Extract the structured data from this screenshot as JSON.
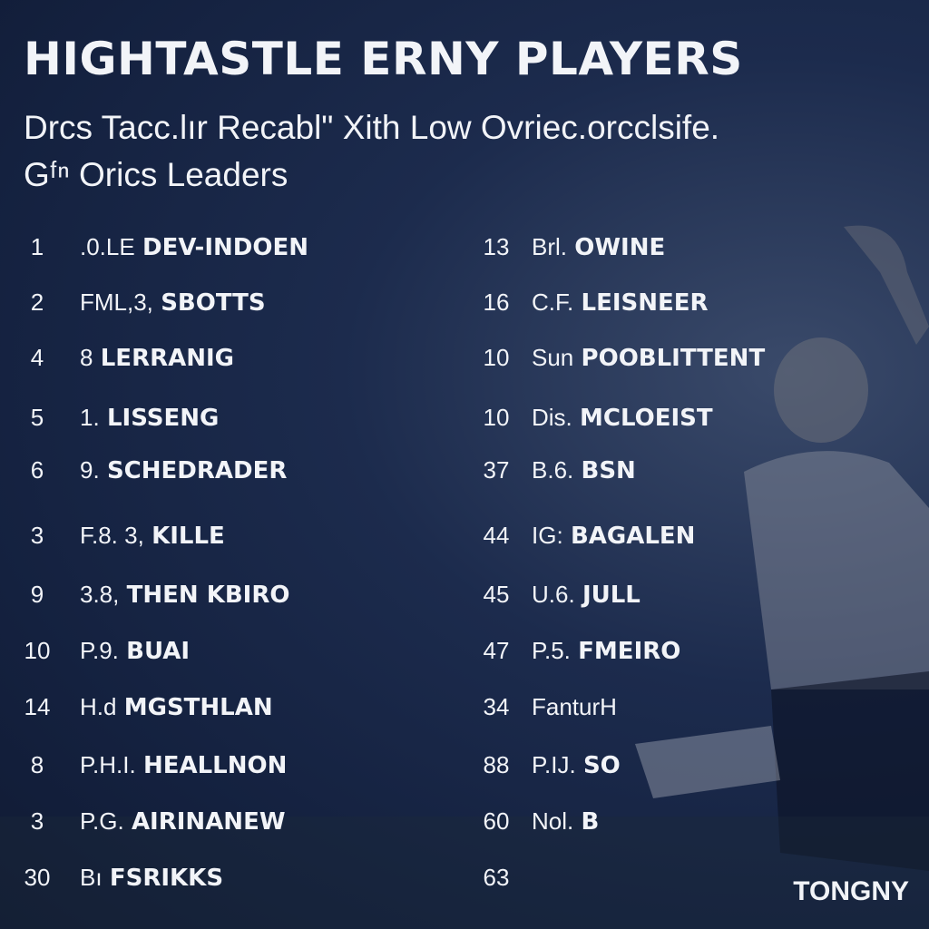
{
  "header": {
    "title": "HIGHTASTLE ERNY PLAYERS",
    "subtitle_lines": [
      "Drcs Tacc.lır Recabl\" Xith Low Ovriec.orcclsife.",
      "Gᶠⁿ Orics Leaders"
    ]
  },
  "columns": [
    [
      {
        "rank": 1,
        "prefix": ".0.LE",
        "name": "DEV-INDOEN"
      },
      {
        "rank": 2,
        "prefix": "FML,3,",
        "name": "SBOTTS"
      },
      {
        "rank": 4,
        "prefix": "8",
        "name": "LERRANIG"
      },
      {
        "rank": 5,
        "prefix": "1.",
        "name": "LISSENG"
      },
      {
        "rank": 6,
        "prefix": "9.",
        "name": "SCHEDRADER"
      },
      {
        "rank": 3,
        "prefix": "F.8. 3,",
        "name": "KILLE"
      },
      {
        "rank": 9,
        "prefix": "3.8,",
        "name": "THEN KBIRO"
      },
      {
        "rank": 10,
        "prefix": "P.9.",
        "name": "BUAI"
      },
      {
        "rank": 14,
        "prefix": "H.d",
        "name": "MGSTHLAN"
      },
      {
        "rank": 8,
        "prefix": "P.H.I.",
        "name": "HEALLNON"
      },
      {
        "rank": 3,
        "prefix": "P.G.",
        "name": "AIRINANEW"
      },
      {
        "rank": 30,
        "prefix": "Bı",
        "name": "FSRIKKS"
      }
    ],
    [
      {
        "rank": 13,
        "prefix": "Brl.",
        "name": "OWINE"
      },
      {
        "rank": 16,
        "prefix": "C.F.",
        "name": "LEISNEER"
      },
      {
        "rank": 10,
        "prefix": "Sun",
        "name": "POOBLITTENT"
      },
      {
        "rank": 10,
        "prefix": "Dis.",
        "name": "MCLOEIST"
      },
      {
        "rank": 37,
        "prefix": "B.6.",
        "name": "BSN"
      },
      {
        "rank": 44,
        "prefix": "IG:",
        "name": "BAGALEN"
      },
      {
        "rank": 45,
        "prefix": "U.6.",
        "name": "JULL"
      },
      {
        "rank": 47,
        "prefix": "P.5.",
        "name": "FMEIRO"
      },
      {
        "rank": 34,
        "prefix": "FanturH"
      },
      {
        "rank": 88,
        "prefix": "P.IJ.",
        "name": "SO"
      },
      {
        "rank": 60,
        "prefix": "Nol.",
        "name": "B"
      },
      {
        "rank": 63
      }
    ]
  ],
  "logo": "TONGNY"
}
